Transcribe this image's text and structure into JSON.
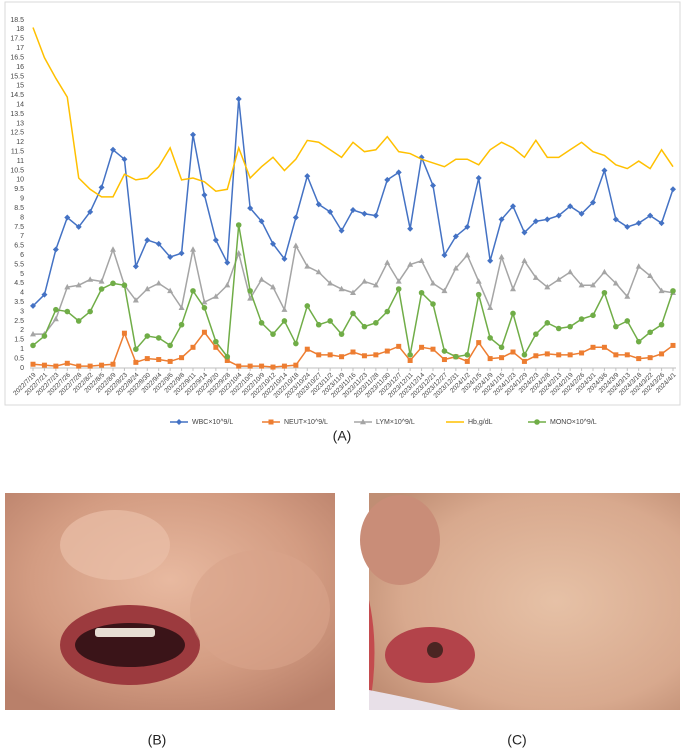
{
  "chart_data": {
    "type": "line",
    "categories": [
      "2022/7/19",
      "2022/7/21",
      "2022/7/23",
      "2022/7/26",
      "2022/7/28",
      "2022/8/2",
      "2022/8/5",
      "2022/8/9",
      "2022/8/23",
      "2022/8/24",
      "2022/8/30",
      "2022/9/4",
      "2022/9/6",
      "2022/9/8",
      "2022/9/11",
      "2022/9/14",
      "2022/9/20",
      "2022/9/28",
      "2022/10/4",
      "2022/10/5",
      "2022/10/9",
      "2022/10/12",
      "2022/10/14",
      "2022/10/18",
      "2023/10/24",
      "2023/10/27",
      "2023/11/2",
      "2023/11/9",
      "2023/11/16",
      "2023/11/23",
      "2023/11/28",
      "2023/11/30",
      "2023/12/7",
      "2023/12/11",
      "2023/12/14",
      "2023/12/21",
      "2023/12/27",
      "2023/12/31",
      "2024/1/2",
      "2024/1/5",
      "2024/1/9",
      "2024/1/15",
      "2024/1/23",
      "2024/1/29",
      "2024/2/3",
      "2024/2/8",
      "2024/2/13",
      "2024/2/19",
      "2024/2/26",
      "2024/3/1",
      "2024/3/6",
      "2024/3/9",
      "2024/3/13",
      "2024/3/18",
      "2024/3/22",
      "2024/3/26",
      "2024/4/1"
    ],
    "series": [
      {
        "name": "WBC×10^9/L",
        "color": "#4472c4",
        "marker": "diamond",
        "values": [
          3.3,
          3.9,
          6.3,
          8.0,
          7.5,
          8.3,
          9.6,
          11.6,
          11.1,
          5.4,
          6.8,
          6.6,
          5.9,
          6.1,
          12.4,
          9.2,
          6.8,
          5.6,
          14.3,
          8.5,
          7.8,
          6.6,
          5.8,
          8.0,
          10.2,
          8.7,
          8.3,
          7.3,
          8.4,
          8.2,
          8.1,
          10.0,
          10.4,
          7.4,
          11.2,
          9.7,
          6.0,
          7.0,
          7.5,
          10.1,
          5.7,
          7.9,
          8.6,
          7.2,
          7.8,
          7.9,
          8.1,
          8.6,
          8.2,
          8.8,
          10.5,
          7.9,
          7.5,
          7.7,
          8.1,
          7.7,
          9.5
        ]
      },
      {
        "name": "NEUT×10^9/L",
        "color": "#ed7d31",
        "marker": "square",
        "values": [
          0.2,
          0.15,
          0.1,
          0.25,
          0.1,
          0.1,
          0.15,
          0.2,
          1.85,
          0.3,
          0.5,
          0.45,
          0.35,
          0.55,
          1.1,
          1.9,
          1.1,
          0.4,
          0.1,
          0.1,
          0.1,
          0.05,
          0.1,
          0.15,
          1.0,
          0.7,
          0.7,
          0.6,
          0.85,
          0.65,
          0.7,
          0.9,
          1.15,
          0.4,
          1.1,
          1.0,
          0.45,
          0.6,
          0.35,
          1.35,
          0.5,
          0.55,
          0.85,
          0.35,
          0.65,
          0.75,
          0.7,
          0.7,
          0.8,
          1.1,
          1.1,
          0.7,
          0.7,
          0.5,
          0.55,
          0.75,
          1.2
        ]
      },
      {
        "name": "LYM×10^9/L",
        "color": "#a5a5a5",
        "marker": "triangle",
        "values": [
          1.8,
          1.8,
          2.6,
          4.3,
          4.4,
          4.7,
          4.6,
          6.3,
          4.4,
          3.6,
          4.2,
          4.5,
          4.1,
          3.2,
          6.3,
          3.5,
          3.8,
          4.4,
          6.1,
          3.7,
          4.7,
          4.3,
          3.1,
          6.5,
          5.4,
          5.1,
          4.5,
          4.2,
          4.0,
          4.6,
          4.4,
          5.6,
          4.6,
          5.5,
          5.7,
          4.5,
          4.1,
          5.3,
          6.0,
          4.6,
          3.2,
          5.9,
          4.2,
          5.7,
          4.8,
          4.3,
          4.7,
          5.1,
          4.4,
          4.4,
          5.1,
          4.5,
          3.8,
          5.4,
          4.9,
          4.1,
          4.0
        ]
      },
      {
        "name": "Hb,g/dL",
        "color": "#ffc000",
        "marker": "none",
        "values": [
          18.1,
          16.5,
          15.4,
          14.4,
          10.1,
          9.5,
          9.1,
          9.1,
          10.3,
          10.0,
          10.1,
          10.7,
          11.7,
          10.0,
          10.1,
          9.9,
          9.4,
          9.5,
          11.7,
          10.1,
          10.7,
          11.2,
          10.5,
          11.1,
          12.1,
          12.0,
          11.6,
          11.2,
          12.0,
          11.5,
          11.6,
          12.3,
          11.5,
          11.4,
          11.1,
          10.9,
          10.7,
          11.1,
          11.1,
          10.8,
          11.6,
          12.0,
          11.7,
          11.2,
          12.1,
          11.2,
          11.2,
          11.6,
          12.0,
          11.5,
          11.3,
          10.8,
          10.6,
          11.0,
          10.6,
          11.6,
          10.7
        ]
      },
      {
        "name": "MONO×10^9/L",
        "color": "#70ad47",
        "marker": "circle",
        "values": [
          1.2,
          1.7,
          3.1,
          3.0,
          2.5,
          3.0,
          4.2,
          4.5,
          4.4,
          1.0,
          1.7,
          1.6,
          1.2,
          2.3,
          4.1,
          3.2,
          1.4,
          0.6,
          7.6,
          4.1,
          2.4,
          1.8,
          2.5,
          1.3,
          3.3,
          2.3,
          2.5,
          1.8,
          2.9,
          2.2,
          2.4,
          3.0,
          4.2,
          0.7,
          4.0,
          3.4,
          0.9,
          0.6,
          0.7,
          3.9,
          1.6,
          1.1,
          2.9,
          0.7,
          1.8,
          2.4,
          2.1,
          2.2,
          2.6,
          2.8,
          4.0,
          2.2,
          2.5,
          1.4,
          1.9,
          2.3,
          4.1
        ]
      }
    ],
    "ylim": [
      0,
      18.5
    ],
    "yticks": [
      0,
      0.5,
      1,
      1.5,
      2,
      2.5,
      3,
      3.5,
      4,
      4.5,
      5,
      5.5,
      6,
      6.5,
      7,
      7.5,
      8,
      8.5,
      9,
      9.5,
      10,
      10.5,
      11,
      11.5,
      12,
      12.5,
      13,
      13.5,
      14,
      14.5,
      15,
      15.5,
      16,
      16.5,
      17,
      17.5,
      18,
      18.5
    ],
    "grid": false,
    "legend": "bottom"
  },
  "panels": [
    "(A)",
    "(B)",
    "(C)"
  ]
}
